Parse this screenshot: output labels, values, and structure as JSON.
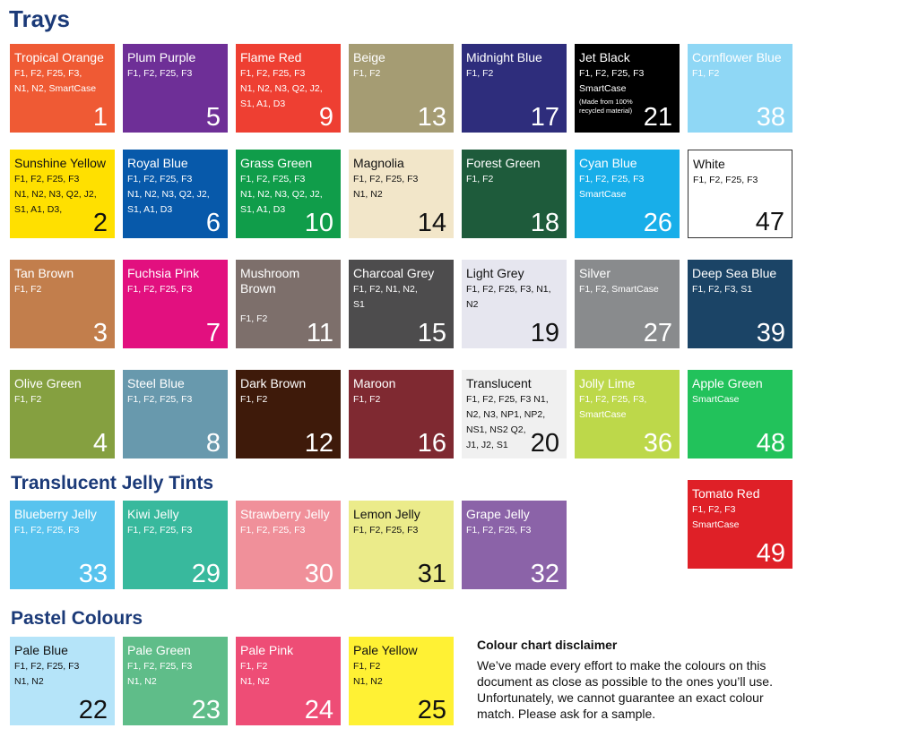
{
  "headings": {
    "trays": "Trays",
    "jelly": "Translucent Jelly Tints",
    "pastel": "Pastel Colours"
  },
  "trays": [
    {
      "name": "Tropical Orange",
      "codes": "F1, F2, F25, F3,\nN1, N2, SmartCase",
      "number": "1",
      "color": "#ef5a34"
    },
    {
      "name": "Plum Purple",
      "codes": "F1, F2, F25, F3",
      "number": "5",
      "color": "#6e2f97"
    },
    {
      "name": "Flame Red",
      "codes": "F1, F2, F25, F3\nN1, N2, N3, Q2, J2,\nS1, A1, D3",
      "number": "9",
      "color": "#ee3f32"
    },
    {
      "name": "Beige",
      "codes": "F1, F2",
      "number": "13",
      "color": "#a59c73"
    },
    {
      "name": "Midnight Blue",
      "codes": "F1, F2",
      "number": "17",
      "color": "#2e2d7c"
    },
    {
      "name": "Jet Black",
      "codes": "F1, F2, F25, F3\nSmartCase",
      "note": "(Made from 100% recycled material)",
      "number": "21",
      "color": "#000000"
    },
    {
      "name": "Cornflower Blue",
      "codes": "F1, F2",
      "number": "38",
      "color": "#8fd7f5"
    },
    {
      "name": "Sunshine Yellow",
      "codes": "F1, F2, F25, F3\nN1, N2, N3, Q2, J2,\nS1, A1, D3,",
      "number": "2",
      "color": "#ffe000",
      "dark": true
    },
    {
      "name": "Royal Blue",
      "codes": "F1, F2, F25, F3\nN1, N2, N3, Q2, J2,\nS1, A1, D3",
      "number": "6",
      "color": "#0759aa"
    },
    {
      "name": "Grass Green",
      "codes": "F1, F2, F25, F3\nN1, N2, N3, Q2, J2,\nS1, A1, D3",
      "number": "10",
      "color": "#109d4a"
    },
    {
      "name": "Magnolia",
      "codes": "F1, F2, F25, F3\nN1, N2",
      "number": "14",
      "color": "#f2e6c9",
      "dark": true
    },
    {
      "name": "Forest Green",
      "codes": "F1, F2",
      "number": "18",
      "color": "#1e5b3b"
    },
    {
      "name": "Cyan Blue",
      "codes": "F1, F2, F25, F3\nSmartCase",
      "number": "26",
      "color": "#18aee9"
    },
    {
      "name": "White",
      "codes": "F1, F2, F25, F3",
      "number": "47",
      "color": "#ffffff",
      "dark": true,
      "outlined": true
    },
    {
      "name": "Tan Brown",
      "codes": "F1, F2",
      "number": "3",
      "color": "#c27e4c"
    },
    {
      "name": "Fuchsia Pink",
      "codes": "F1, F2, F25, F3",
      "number": "7",
      "color": "#e2107f"
    },
    {
      "name": "Mushroom\nBrown",
      "codes": "\nF1, F2",
      "number": "11",
      "color": "#7d6f6b"
    },
    {
      "name": "Charcoal Grey",
      "codes": "F1, F2, N1, N2,\nS1",
      "number": "15",
      "color": "#4d4c4d"
    },
    {
      "name": "Light Grey",
      "codes": "F1, F2, F25, F3, N1,\nN2",
      "number": "19",
      "color": "#e6e6ef",
      "dark": true
    },
    {
      "name": "Silver",
      "codes": "F1, F2, SmartCase",
      "number": "27",
      "color": "#898b8d"
    },
    {
      "name": "Deep Sea Blue",
      "codes": "F1, F2, F3, S1",
      "number": "39",
      "color": "#1b4466"
    },
    {
      "name": "Olive Green",
      "codes": "F1, F2",
      "number": "4",
      "color": "#85a040"
    },
    {
      "name": "Steel Blue",
      "codes": "F1, F2, F25, F3",
      "number": "8",
      "color": "#6899ad"
    },
    {
      "name": "Dark Brown",
      "codes": "F1, F2",
      "number": "12",
      "color": "#3e1a0a"
    },
    {
      "name": "Maroon",
      "codes": "F1, F2",
      "number": "16",
      "color": "#7f2931"
    },
    {
      "name": "Translucent",
      "codes": "F1, F2, F25, F3 N1,\nN2, N3, NP1, NP2,\nNS1, NS2 Q2,\nJ1, J2, S1",
      "number": "20",
      "color": "#f0f0f0",
      "dark": true
    },
    {
      "name": "Jolly Lime",
      "codes": "F1, F2, F25, F3,\nSmartCase",
      "number": "36",
      "color": "#bdd84a"
    },
    {
      "name": "Apple Green",
      "codes": "SmartCase",
      "number": "48",
      "color": "#22c25b"
    },
    {
      "name": "Tomato Red",
      "codes": "F1, F2, F3\nSmartCase",
      "number": "49",
      "color": "#df2027"
    }
  ],
  "jelly": [
    {
      "name": "Blueberry Jelly",
      "codes": "F1, F2, F25, F3",
      "number": "33",
      "color": "#58c3ee"
    },
    {
      "name": "Kiwi Jelly",
      "codes": "F1, F2, F25, F3",
      "number": "29",
      "color": "#38b99d"
    },
    {
      "name": "Strawberry Jelly",
      "codes": "F1, F2, F25, F3",
      "number": "30",
      "color": "#f0909a"
    },
    {
      "name": "Lemon Jelly",
      "codes": "F1, F2, F25, F3",
      "number": "31",
      "color": "#ebeb8a",
      "dark": true
    },
    {
      "name": "Grape Jelly",
      "codes": "F1, F2, F25, F3",
      "number": "32",
      "color": "#8b63a8"
    }
  ],
  "pastel": [
    {
      "name": "Pale Blue",
      "codes": "F1, F2, F25, F3\nN1, N2",
      "number": "22",
      "color": "#b5e4f9",
      "dark": true
    },
    {
      "name": "Pale Green",
      "codes": "F1, F2, F25, F3\nN1, N2",
      "number": "23",
      "color": "#5fbd89"
    },
    {
      "name": "Pale Pink",
      "codes": "F1, F2\nN1, N2",
      "number": "24",
      "color": "#ee4d76"
    },
    {
      "name": "Pale Yellow",
      "codes": "F1, F2\nN1, N2",
      "number": "25",
      "color": "#fff134",
      "dark": true
    }
  ],
  "disclaimer": {
    "title": "Colour chart disclaimer",
    "text": "We’ve made every effort to make the colours on this document as close as possible to the ones you’ll use. Unfortunately, we cannot guarantee an exact colour match. Please ask for a sample."
  }
}
